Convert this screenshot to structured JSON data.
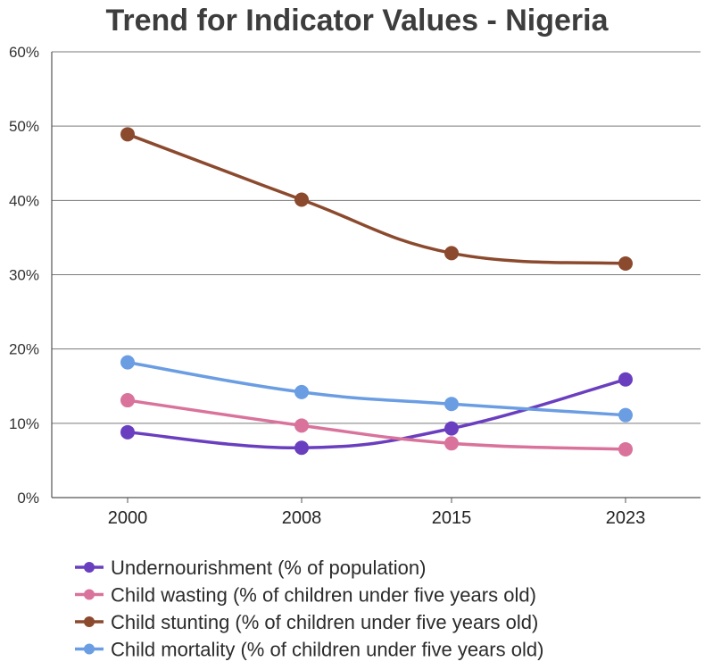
{
  "chart_data": {
    "type": "line",
    "title": "Trend for Indicator Values - Nigeria",
    "xlabel": "",
    "ylabel": "",
    "categories": [
      "2000",
      "2008",
      "2015",
      "2023"
    ],
    "ylim": [
      0,
      60
    ],
    "yticks": [
      "0%",
      "10%",
      "20%",
      "30%",
      "40%",
      "50%",
      "60%"
    ],
    "grid": true,
    "legend_position": "bottom",
    "series": [
      {
        "name": "Undernourishment (% of population)",
        "color": "#6a3fbf",
        "values": [
          8.8,
          6.7,
          9.3,
          15.9
        ]
      },
      {
        "name": "Child wasting (% of children under five years old)",
        "color": "#d9739b",
        "values": [
          13.1,
          9.7,
          7.3,
          6.5
        ]
      },
      {
        "name": "Child stunting (% of children under five years old)",
        "color": "#8b4a2e",
        "values": [
          48.9,
          40.1,
          32.9,
          31.5
        ]
      },
      {
        "name": "Child mortality (% of children under five years old)",
        "color": "#6b9de3",
        "values": [
          18.2,
          14.2,
          12.6,
          11.1
        ]
      }
    ]
  }
}
